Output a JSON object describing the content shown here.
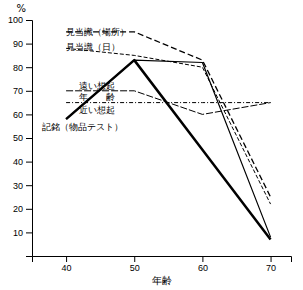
{
  "chart_data": {
    "type": "line",
    "xlabel": "年齢",
    "ylabel": "%",
    "x": [
      40,
      50,
      60,
      70
    ],
    "xlim": [
      35,
      73
    ],
    "ylim": [
      0,
      100
    ],
    "xticks": [
      40,
      50,
      60,
      70
    ],
    "yticks": [
      10,
      20,
      30,
      40,
      50,
      60,
      70,
      80,
      90,
      100
    ],
    "grid": false,
    "series": [
      {
        "color": "#000000",
        "line_style": "dashed",
        "values": [
          95,
          95,
          83,
          25
        ]
      },
      {
        "color": "#000000",
        "line_style": "dashed",
        "values": [
          88,
          85,
          80,
          22
        ]
      },
      {
        "color": "#000000",
        "line_style": "dashed",
        "values": [
          70,
          70,
          60,
          65
        ]
      },
      {
        "color": "#000000",
        "line_style": "dashdot",
        "values": [
          65,
          65,
          65,
          65
        ]
      },
      {
        "color": "#000000",
        "line_style": "solid",
        "values": [
          58,
          83,
          82,
          8
        ]
      },
      {
        "color": "#000000",
        "line_style": "solid",
        "values": [
          58,
          83,
          45,
          7
        ]
      }
    ],
    "annotations": [
      "見当識（場所）",
      "見当識（日）",
      "遠い想起",
      "年　　齢",
      "近い想起",
      "記銘（物品テスト）"
    ]
  }
}
